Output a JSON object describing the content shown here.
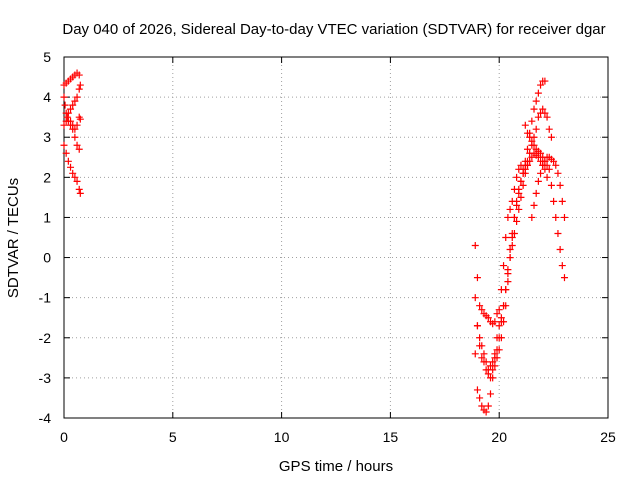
{
  "chart_data": {
    "type": "scatter",
    "title": "Day 040 of 2026, Sidereal Day-to-day VTEC variation (SDTVAR) for receiver dgar",
    "xlabel": "GPS time / hours",
    "ylabel": "SDTVAR / TECUs",
    "xlim": [
      0,
      25
    ],
    "ylim": [
      -4,
      5
    ],
    "x_ticks": [
      0,
      5,
      10,
      15,
      20,
      25
    ],
    "y_ticks": [
      -4,
      -3,
      -2,
      -1,
      0,
      1,
      2,
      3,
      4,
      5
    ],
    "x_tick_labels": [
      "0",
      "5",
      "10",
      "15",
      "20",
      "25"
    ],
    "y_tick_labels": [
      "-4",
      "-3",
      "-2",
      "-1",
      "0",
      "1",
      "2",
      "3",
      "4",
      "5"
    ],
    "grid": true,
    "marker": "+",
    "color": "#ff0000",
    "series": [
      {
        "x": [
          0.0,
          0.1,
          0.2,
          0.3,
          0.4,
          0.5,
          0.6,
          0.7
        ],
        "y": [
          4.3,
          4.35,
          4.4,
          4.45,
          4.5,
          4.55,
          4.6,
          4.55
        ]
      },
      {
        "x": [
          0.0,
          0.05,
          0.1,
          0.15,
          0.2,
          0.3,
          0.4,
          0.5,
          0.6,
          0.7
        ],
        "y": [
          4.0,
          3.8,
          3.6,
          3.5,
          3.4,
          3.3,
          3.2,
          3.0,
          2.8,
          2.7
        ]
      },
      {
        "x": [
          0.0,
          0.1,
          0.2,
          0.3,
          0.4,
          0.5,
          0.6,
          0.7,
          0.75
        ],
        "y": [
          2.8,
          2.6,
          2.4,
          2.25,
          2.1,
          2.0,
          1.9,
          1.7,
          1.6
        ]
      },
      {
        "x": [
          0.0,
          0.1,
          0.2,
          0.3,
          0.4,
          0.5,
          0.6,
          0.7,
          0.75
        ],
        "y": [
          3.3,
          3.4,
          3.6,
          3.7,
          3.8,
          3.9,
          4.0,
          4.2,
          4.3
        ]
      },
      {
        "x": [
          0.3,
          0.4,
          0.5,
          0.6,
          0.7,
          0.75
        ],
        "y": [
          3.4,
          3.3,
          3.2,
          3.3,
          3.5,
          3.45
        ]
      },
      {
        "x": [
          18.9,
          19.0,
          19.1,
          19.2,
          19.3,
          19.4,
          19.5,
          19.6,
          19.7,
          19.8,
          19.9,
          20.0,
          20.1,
          20.2,
          20.3,
          20.4,
          20.5,
          20.6,
          20.7,
          20.8,
          20.9,
          21.0,
          21.1,
          21.2,
          21.3,
          21.4,
          21.5,
          21.6,
          21.7,
          21.8,
          21.9,
          22.0,
          22.1
        ],
        "y": [
          0.3,
          -0.5,
          -1.2,
          -1.3,
          -1.4,
          -1.45,
          -1.5,
          -1.6,
          -1.65,
          -1.6,
          -1.4,
          -1.3,
          -0.8,
          -0.2,
          0.5,
          1.0,
          1.2,
          1.4,
          1.7,
          2.0,
          2.2,
          2.3,
          2.2,
          2.4,
          2.7,
          3.1,
          3.4,
          3.7,
          3.9,
          4.1,
          4.3,
          4.4,
          4.4
        ]
      },
      {
        "x": [
          18.9,
          19.0,
          19.1,
          19.2,
          19.3,
          19.4,
          19.5,
          19.6,
          19.7,
          19.8,
          19.9,
          20.0,
          20.1,
          20.2,
          20.3,
          20.4,
          20.5,
          20.6,
          20.7,
          20.8,
          20.9,
          21.0,
          21.1,
          21.2,
          21.3,
          21.4,
          21.5,
          21.6,
          21.7,
          21.8,
          21.9,
          22.0,
          22.1,
          22.2,
          22.3,
          22.4
        ],
        "y": [
          -1.0,
          -1.7,
          -2.2,
          -2.5,
          -2.6,
          -2.8,
          -2.9,
          -3.0,
          -2.8,
          -2.4,
          -2.0,
          -1.7,
          -1.5,
          -1.2,
          -0.8,
          -0.4,
          0.0,
          0.3,
          0.6,
          0.9,
          1.2,
          1.5,
          1.8,
          2.1,
          2.3,
          2.6,
          2.8,
          3.0,
          3.2,
          3.5,
          3.6,
          3.7,
          3.6,
          3.5,
          3.2,
          3.0
        ]
      },
      {
        "x": [
          18.9,
          19.0,
          19.1,
          19.2,
          19.3,
          19.4,
          19.5,
          19.6,
          19.7,
          19.8,
          19.9,
          20.0,
          20.1,
          20.2,
          20.3,
          20.4,
          20.5,
          20.6,
          20.7,
          20.8,
          20.9,
          21.0,
          21.1,
          21.2,
          21.3
        ],
        "y": [
          -2.4,
          -3.3,
          -3.5,
          -3.7,
          -3.8,
          -3.85,
          -3.7,
          -3.4,
          -3.0,
          -2.7,
          -2.5,
          -2.3,
          -2.0,
          -1.6,
          -1.2,
          -0.6,
          0.0,
          0.5,
          1.0,
          1.3,
          1.6,
          1.9,
          2.1,
          2.3,
          2.4
        ]
      },
      {
        "x": [
          19.0,
          19.1,
          19.2,
          19.3,
          19.4,
          19.5,
          19.6,
          19.7,
          19.8,
          19.9,
          20.0,
          20.1,
          20.2,
          20.3,
          20.4,
          20.5,
          20.6,
          20.7,
          20.8,
          20.9,
          21.0,
          21.1,
          21.2,
          21.3,
          21.4,
          21.5,
          21.6,
          21.7,
          21.8,
          21.9,
          22.0,
          22.1,
          22.2
        ],
        "y": [
          -1.7,
          -2.0,
          -2.2,
          -2.4,
          -2.6,
          -2.8,
          -2.7,
          -2.6,
          -2.5,
          -2.3,
          -2.0,
          -1.6,
          -1.2,
          -0.8,
          -0.3,
          0.2,
          0.6,
          1.0,
          1.4,
          1.7,
          1.9,
          2.1,
          2.2,
          2.3,
          2.4,
          2.5,
          2.6,
          2.55,
          2.5,
          2.4,
          2.3,
          2.2,
          2.0
        ]
      },
      {
        "x": [
          21.2,
          21.3,
          21.4,
          21.5,
          21.6,
          21.7,
          21.8,
          21.9,
          22.0,
          22.1,
          22.2,
          22.3,
          22.4,
          22.5,
          22.6,
          22.7,
          22.8,
          22.9,
          23.0
        ],
        "y": [
          3.3,
          3.1,
          3.0,
          2.9,
          2.8,
          2.7,
          2.65,
          2.6,
          2.5,
          2.4,
          2.3,
          2.2,
          1.8,
          1.4,
          1.0,
          0.6,
          0.2,
          -0.2,
          -0.5
        ]
      },
      {
        "x": [
          21.5,
          21.6,
          21.7,
          21.8,
          21.9,
          22.0,
          22.1,
          22.2,
          22.3,
          22.4,
          22.5,
          22.6,
          22.7,
          22.8,
          22.9,
          23.0
        ],
        "y": [
          1.0,
          1.3,
          1.6,
          1.9,
          2.1,
          2.3,
          2.4,
          2.5,
          2.5,
          2.45,
          2.4,
          2.3,
          2.1,
          1.8,
          1.4,
          1.0
        ]
      }
    ]
  }
}
